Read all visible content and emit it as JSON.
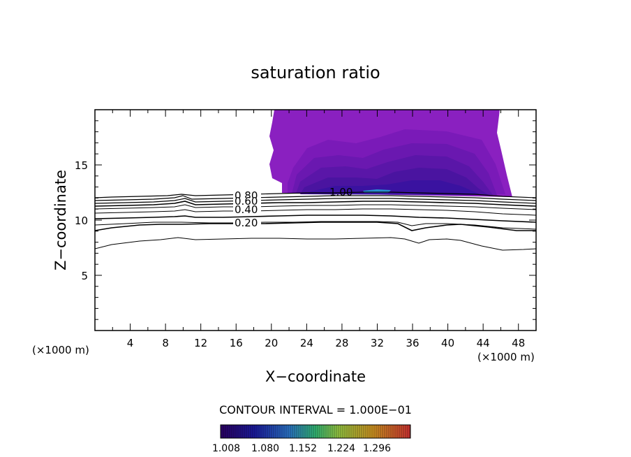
{
  "chart_data": {
    "type": "contour",
    "title": "saturation ratio",
    "xlabel": "X−coordinate",
    "ylabel": "Z−coordinate",
    "x_unit_left": "(×1000 m)",
    "x_unit_right": "(×1000 m)",
    "xlim": [
      0,
      50
    ],
    "ylim": [
      0,
      20
    ],
    "x_ticks": [
      "4",
      "8",
      "12",
      "16",
      "20",
      "24",
      "28",
      "32",
      "36",
      "40",
      "44",
      "48"
    ],
    "y_ticks": [
      "5",
      "10",
      "15"
    ],
    "contour_interval_text": "CONTOUR INTERVAL = 1.000E−01",
    "contour_labels": [
      "0.80",
      "0.60",
      "0.40",
      "0.20",
      "1.00"
    ],
    "colorbar_ticks": [
      "1.008",
      "1.080",
      "1.152",
      "1.224",
      "1.296"
    ],
    "colorbar_colors": [
      "#2a0060",
      "#1a1a9a",
      "#2a70c0",
      "#30b070",
      "#90c040",
      "#c89020",
      "#c83030"
    ],
    "shaded_region_colors": [
      "#8a20c0",
      "#7a1ab8",
      "#6a18b0",
      "#5a16a8",
      "#4a14a0",
      "#3a12a0"
    ]
  }
}
